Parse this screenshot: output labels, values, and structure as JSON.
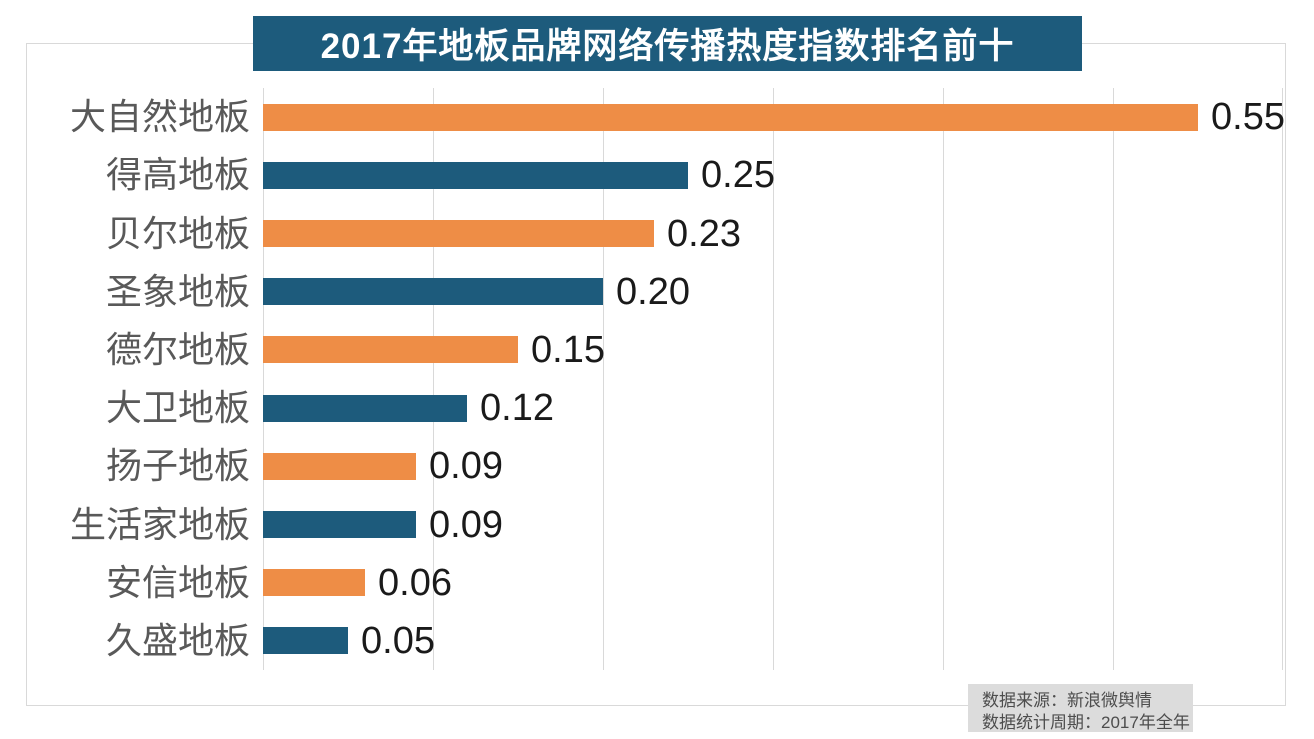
{
  "title": "2017年地板品牌网络传播热度指数排名前十",
  "colors": {
    "orange": "#ee8d46",
    "blue": "#1d5b7c",
    "title_bg": "#1d5b7c",
    "title_text": "#ffffff",
    "grid": "#d9d9d9",
    "category_label": "#595959",
    "value_label": "#1a1a1a",
    "footer_bg": "#dcdcdc",
    "footer_text": "#4d4d4d"
  },
  "footer": {
    "line1": "数据来源：新浪微舆情",
    "line2": "数据统计周期：2017年全年"
  },
  "chart_data": {
    "type": "bar",
    "orientation": "horizontal",
    "title": "2017年地板品牌网络传播热度指数排名前十",
    "categories": [
      "大自然地板",
      "得高地板",
      "贝尔地板",
      "圣象地板",
      "德尔地板",
      "大卫地板",
      "扬子地板",
      "生活家地板",
      "安信地板",
      "久盛地板"
    ],
    "values": [
      0.55,
      0.25,
      0.23,
      0.2,
      0.15,
      0.12,
      0.09,
      0.09,
      0.06,
      0.05
    ],
    "value_labels": [
      "0.55",
      "0.25",
      "0.23",
      "0.20",
      "0.15",
      "0.12",
      "0.09",
      "0.09",
      "0.06",
      "0.05"
    ],
    "xlim": [
      0,
      0.6
    ],
    "gridline_step": 0.1,
    "grid": true,
    "legend": false,
    "bar_color_pattern": [
      "orange",
      "blue"
    ],
    "source_note": "数据来源：新浪微舆情",
    "period_note": "数据统计周期：2017年全年"
  }
}
